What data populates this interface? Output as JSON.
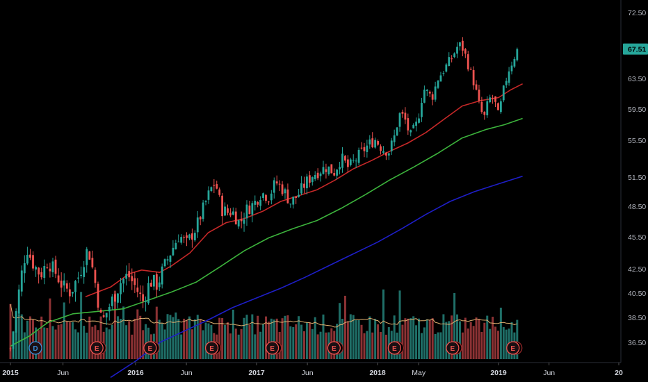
{
  "chart_data": {
    "type": "candlestick",
    "title": "",
    "y_axis": {
      "ticks": [
        "72.50",
        "63.50",
        "59.50",
        "55.50",
        "51.50",
        "48.50",
        "45.50",
        "42.50",
        "40.50",
        "38.50",
        "36.50"
      ],
      "ylim": [
        34.5,
        73.5
      ]
    },
    "x_axis": {
      "ticks": [
        {
          "label": "2015",
          "t": 0.0,
          "bold": true
        },
        {
          "label": "Jun",
          "t": 0.42,
          "bold": false
        },
        {
          "label": "2016",
          "t": 1.0,
          "bold": true
        },
        {
          "label": "Jun",
          "t": 1.42,
          "bold": false
        },
        {
          "label": "2017",
          "t": 2.0,
          "bold": true
        },
        {
          "label": "Jun",
          "t": 2.42,
          "bold": false
        },
        {
          "label": "2018",
          "t": 3.0,
          "bold": true
        },
        {
          "label": "May",
          "t": 3.34,
          "bold": false
        },
        {
          "label": "2019",
          "t": 4.0,
          "bold": true
        },
        {
          "label": "Jun",
          "t": 4.42,
          "bold": false
        },
        {
          "label": "20",
          "t": 5.0,
          "bold": true
        }
      ],
      "xlim": [
        -0.05,
        5.05
      ]
    },
    "last_price": {
      "label": "67.51",
      "value": 67.51,
      "color": "#26a69a"
    },
    "colors": {
      "up": "#26a69a",
      "down": "#ef5350",
      "ma_short": "#c62828",
      "ma_mid": "#3cb33c",
      "ma_long": "#1e1ec8",
      "volume_avg": "#e0b070"
    },
    "price_path": [
      {
        "t": 0.0,
        "v": 36.0
      },
      {
        "t": 0.04,
        "v": 38.5
      },
      {
        "t": 0.08,
        "v": 41.5
      },
      {
        "t": 0.13,
        "v": 44.5
      },
      {
        "t": 0.18,
        "v": 43.0
      },
      {
        "t": 0.24,
        "v": 42.0
      },
      {
        "t": 0.3,
        "v": 43.2
      },
      {
        "t": 0.36,
        "v": 42.2
      },
      {
        "t": 0.42,
        "v": 41.0
      },
      {
        "t": 0.48,
        "v": 40.6
      },
      {
        "t": 0.55,
        "v": 42.0
      },
      {
        "t": 0.62,
        "v": 44.5
      },
      {
        "t": 0.68,
        "v": 41.2
      },
      {
        "t": 0.73,
        "v": 38.0
      },
      {
        "t": 0.78,
        "v": 39.2
      },
      {
        "t": 0.84,
        "v": 40.5
      },
      {
        "t": 0.88,
        "v": 41.4
      },
      {
        "t": 0.94,
        "v": 42.0
      },
      {
        "t": 1.0,
        "v": 41.0
      },
      {
        "t": 1.06,
        "v": 39.8
      },
      {
        "t": 1.12,
        "v": 41.5
      },
      {
        "t": 1.18,
        "v": 41.2
      },
      {
        "t": 1.24,
        "v": 42.8
      },
      {
        "t": 1.3,
        "v": 44.3
      },
      {
        "t": 1.36,
        "v": 45.7
      },
      {
        "t": 1.42,
        "v": 44.8
      },
      {
        "t": 1.5,
        "v": 46.4
      },
      {
        "t": 1.56,
        "v": 48.3
      },
      {
        "t": 1.62,
        "v": 50.2
      },
      {
        "t": 1.66,
        "v": 51.0
      },
      {
        "t": 1.71,
        "v": 48.2
      },
      {
        "t": 1.76,
        "v": 47.9
      },
      {
        "t": 1.8,
        "v": 48.0
      },
      {
        "t": 1.86,
        "v": 46.8
      },
      {
        "t": 1.92,
        "v": 48.2
      },
      {
        "t": 1.98,
        "v": 48.8
      },
      {
        "t": 2.04,
        "v": 49.9
      },
      {
        "t": 2.1,
        "v": 49.5
      },
      {
        "t": 2.16,
        "v": 51.0
      },
      {
        "t": 2.22,
        "v": 50.2
      },
      {
        "t": 2.28,
        "v": 48.9
      },
      {
        "t": 2.34,
        "v": 49.6
      },
      {
        "t": 2.4,
        "v": 50.8
      },
      {
        "t": 2.46,
        "v": 51.7
      },
      {
        "t": 2.52,
        "v": 52.2
      },
      {
        "t": 2.58,
        "v": 52.6
      },
      {
        "t": 2.64,
        "v": 52.0
      },
      {
        "t": 2.7,
        "v": 53.6
      },
      {
        "t": 2.76,
        "v": 52.5
      },
      {
        "t": 2.82,
        "v": 53.4
      },
      {
        "t": 2.88,
        "v": 54.4
      },
      {
        "t": 2.94,
        "v": 55.2
      },
      {
        "t": 2.98,
        "v": 55.6
      },
      {
        "t": 3.04,
        "v": 54.6
      },
      {
        "t": 3.1,
        "v": 54.3
      },
      {
        "t": 3.14,
        "v": 56.0
      },
      {
        "t": 3.18,
        "v": 58.8
      },
      {
        "t": 3.22,
        "v": 58.5
      },
      {
        "t": 3.27,
        "v": 56.0
      },
      {
        "t": 3.33,
        "v": 57.8
      },
      {
        "t": 3.38,
        "v": 62.2
      },
      {
        "t": 3.45,
        "v": 61.0
      },
      {
        "t": 3.5,
        "v": 63.5
      },
      {
        "t": 3.56,
        "v": 65.0
      },
      {
        "t": 3.62,
        "v": 66.5
      },
      {
        "t": 3.67,
        "v": 68.2
      },
      {
        "t": 3.71,
        "v": 67.5
      },
      {
        "t": 3.76,
        "v": 64.8
      },
      {
        "t": 3.8,
        "v": 62.8
      },
      {
        "t": 3.84,
        "v": 60.0
      },
      {
        "t": 3.88,
        "v": 58.2
      },
      {
        "t": 3.92,
        "v": 60.8
      },
      {
        "t": 3.96,
        "v": 61.0
      },
      {
        "t": 4.0,
        "v": 58.5
      },
      {
        "t": 4.04,
        "v": 61.8
      },
      {
        "t": 4.08,
        "v": 64.5
      },
      {
        "t": 4.12,
        "v": 66.0
      },
      {
        "t": 4.155,
        "v": 67.51
      }
    ],
    "moving_averages": {
      "ma_short": [
        {
          "t": 0.6,
          "v": 40.2
        },
        {
          "t": 0.8,
          "v": 41.0
        },
        {
          "t": 0.95,
          "v": 42.1
        },
        {
          "t": 1.05,
          "v": 42.4
        },
        {
          "t": 1.2,
          "v": 42.2
        },
        {
          "t": 1.3,
          "v": 42.8
        },
        {
          "t": 1.45,
          "v": 44.0
        },
        {
          "t": 1.6,
          "v": 45.9
        },
        {
          "t": 1.75,
          "v": 46.9
        },
        {
          "t": 1.9,
          "v": 47.3
        },
        {
          "t": 2.05,
          "v": 48.0
        },
        {
          "t": 2.2,
          "v": 49.0
        },
        {
          "t": 2.35,
          "v": 49.6
        },
        {
          "t": 2.5,
          "v": 50.2
        },
        {
          "t": 2.65,
          "v": 51.2
        },
        {
          "t": 2.8,
          "v": 52.4
        },
        {
          "t": 2.95,
          "v": 53.3
        },
        {
          "t": 3.1,
          "v": 54.3
        },
        {
          "t": 3.25,
          "v": 55.2
        },
        {
          "t": 3.4,
          "v": 56.5
        },
        {
          "t": 3.55,
          "v": 58.2
        },
        {
          "t": 3.7,
          "v": 59.9
        },
        {
          "t": 3.85,
          "v": 60.6
        },
        {
          "t": 4.0,
          "v": 61.0
        },
        {
          "t": 4.1,
          "v": 62.0
        },
        {
          "t": 4.2,
          "v": 62.8
        }
      ],
      "ma_mid": [
        {
          "t": 0.0,
          "v": 36.2
        },
        {
          "t": 0.15,
          "v": 37.0
        },
        {
          "t": 0.3,
          "v": 38.1
        },
        {
          "t": 0.5,
          "v": 38.8
        },
        {
          "t": 0.7,
          "v": 39.0
        },
        {
          "t": 0.9,
          "v": 39.2
        },
        {
          "t": 1.1,
          "v": 39.9
        },
        {
          "t": 1.3,
          "v": 40.6
        },
        {
          "t": 1.5,
          "v": 41.4
        },
        {
          "t": 1.7,
          "v": 42.7
        },
        {
          "t": 1.9,
          "v": 44.2
        },
        {
          "t": 2.1,
          "v": 45.4
        },
        {
          "t": 2.3,
          "v": 46.3
        },
        {
          "t": 2.5,
          "v": 47.1
        },
        {
          "t": 2.7,
          "v": 48.3
        },
        {
          "t": 2.9,
          "v": 49.7
        },
        {
          "t": 3.1,
          "v": 51.2
        },
        {
          "t": 3.3,
          "v": 52.6
        },
        {
          "t": 3.5,
          "v": 54.1
        },
        {
          "t": 3.7,
          "v": 55.8
        },
        {
          "t": 3.9,
          "v": 56.9
        },
        {
          "t": 4.05,
          "v": 57.5
        },
        {
          "t": 4.2,
          "v": 58.3
        }
      ],
      "ma_long": [
        {
          "t": 0.8,
          "v": 33.7
        },
        {
          "t": 1.0,
          "v": 35.0
        },
        {
          "t": 1.2,
          "v": 36.5
        },
        {
          "t": 1.4,
          "v": 37.4
        },
        {
          "t": 1.6,
          "v": 38.3
        },
        {
          "t": 1.8,
          "v": 39.3
        },
        {
          "t": 2.0,
          "v": 40.1
        },
        {
          "t": 2.2,
          "v": 40.9
        },
        {
          "t": 2.4,
          "v": 41.8
        },
        {
          "t": 2.6,
          "v": 42.8
        },
        {
          "t": 2.8,
          "v": 43.9
        },
        {
          "t": 3.0,
          "v": 45.0
        },
        {
          "t": 3.2,
          "v": 46.3
        },
        {
          "t": 3.4,
          "v": 47.7
        },
        {
          "t": 3.6,
          "v": 49.0
        },
        {
          "t": 3.8,
          "v": 50.0
        },
        {
          "t": 4.0,
          "v": 50.8
        },
        {
          "t": 4.2,
          "v": 51.6
        }
      ]
    },
    "events": [
      {
        "label": "D",
        "t": 0.2,
        "color": "#3a8fd8"
      },
      {
        "label": "E",
        "t": 0.69,
        "color": "#ef5350"
      },
      {
        "label": "E",
        "t": 1.12,
        "color": "#ef5350"
      },
      {
        "label": "E",
        "t": 1.63,
        "color": "#ef5350"
      },
      {
        "label": "E",
        "t": 2.13,
        "color": "#ef5350"
      },
      {
        "label": "E",
        "t": 2.64,
        "color": "#ef5350"
      },
      {
        "label": "E",
        "t": 3.14,
        "color": "#ef5350"
      },
      {
        "label": "E",
        "t": 3.62,
        "color": "#ef5350"
      },
      {
        "label": "E",
        "t": 4.12,
        "color": "#ef5350"
      }
    ]
  }
}
